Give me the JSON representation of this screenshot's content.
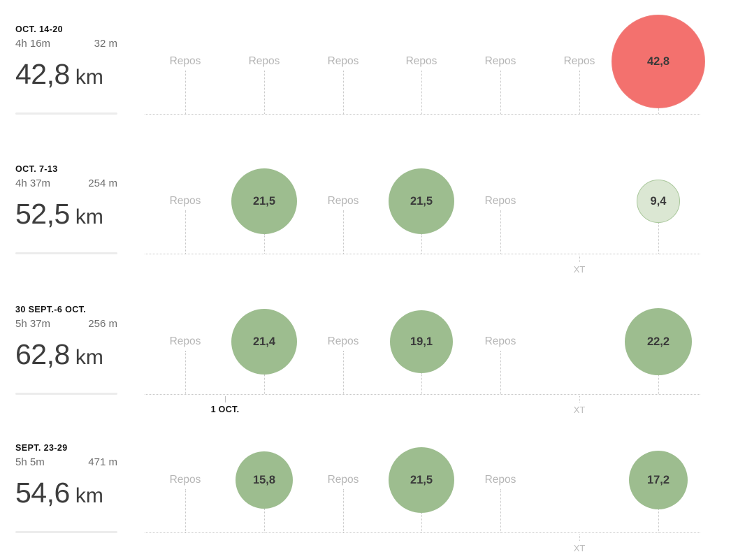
{
  "chart_data": {
    "type": "scatter",
    "title": "",
    "description": "Weekly training log: one row per week (most recent on top), one column per day Mon-Sun; bubble size encodes kilometres run; rest days marked with text; cross-training marked below the axis",
    "legend_position": "none",
    "grid": "dotted day guides with dotted weekly baseline",
    "labels": {
      "rest": "Repos",
      "cross_training": "XT",
      "distance_unit": "km"
    },
    "colors": {
      "run_fill": "#9dbd8f",
      "run_light_fill": "#dbe7d3",
      "run_light_border": "#a9c79b",
      "race_fill": "#f3716e",
      "race_border": "#f07e7b",
      "value_text": "#3a3a3a",
      "muted_text": "#b5b5b5",
      "strong_text": "#131313",
      "stat_text": "#6e6e6e",
      "distance_text": "#3d3d3d",
      "guide": "#c7c7c7",
      "divider": "#ececec"
    },
    "weeks": [
      {
        "label": "OCT. 14-20",
        "time": "4h 16m",
        "elevation": "32 m",
        "distance": "42,8",
        "distance_unit": "km",
        "days": [
          {
            "type": "rest",
            "label": "Repos"
          },
          {
            "type": "rest",
            "label": "Repos"
          },
          {
            "type": "rest",
            "label": "Repos"
          },
          {
            "type": "rest",
            "label": "Repos"
          },
          {
            "type": "rest",
            "label": "Repos"
          },
          {
            "type": "rest",
            "label": "Repos"
          },
          {
            "type": "run",
            "value": "42,8",
            "km": 42.8,
            "variant": "race"
          }
        ]
      },
      {
        "label": "OCT. 7-13",
        "time": "4h 37m",
        "elevation": "254 m",
        "distance": "52,5",
        "distance_unit": "km",
        "days": [
          {
            "type": "rest",
            "label": "Repos"
          },
          {
            "type": "run",
            "value": "21,5",
            "km": 21.5,
            "variant": "normal"
          },
          {
            "type": "rest",
            "label": "Repos"
          },
          {
            "type": "run",
            "value": "21,5",
            "km": 21.5,
            "variant": "normal"
          },
          {
            "type": "rest",
            "label": "Repos"
          },
          {
            "type": "xt",
            "label": "XT"
          },
          {
            "type": "run",
            "value": "9,4",
            "km": 9.4,
            "variant": "light"
          }
        ]
      },
      {
        "label": "30 SEPT.-6 OCT.",
        "time": "5h 37m",
        "elevation": "256 m",
        "distance": "62,8",
        "distance_unit": "km",
        "month_marker": {
          "label": "1 OCT.",
          "between_days": [
            0,
            1
          ]
        },
        "days": [
          {
            "type": "rest",
            "label": "Repos"
          },
          {
            "type": "run",
            "value": "21,4",
            "km": 21.4,
            "variant": "normal"
          },
          {
            "type": "rest",
            "label": "Repos"
          },
          {
            "type": "run",
            "value": "19,1",
            "km": 19.1,
            "variant": "normal"
          },
          {
            "type": "rest",
            "label": "Repos"
          },
          {
            "type": "xt",
            "label": "XT"
          },
          {
            "type": "run",
            "value": "22,2",
            "km": 22.2,
            "variant": "normal"
          }
        ]
      },
      {
        "label": "SEPT. 23-29",
        "time": "5h 5m",
        "elevation": "471 m",
        "distance": "54,6",
        "distance_unit": "km",
        "days": [
          {
            "type": "rest",
            "label": "Repos"
          },
          {
            "type": "run",
            "value": "15,8",
            "km": 15.8,
            "variant": "normal"
          },
          {
            "type": "rest",
            "label": "Repos"
          },
          {
            "type": "run",
            "value": "21,5",
            "km": 21.5,
            "variant": "normal"
          },
          {
            "type": "rest",
            "label": "Repos"
          },
          {
            "type": "xt",
            "label": "XT"
          },
          {
            "type": "run",
            "value": "17,2",
            "km": 17.2,
            "variant": "normal"
          }
        ]
      }
    ]
  }
}
